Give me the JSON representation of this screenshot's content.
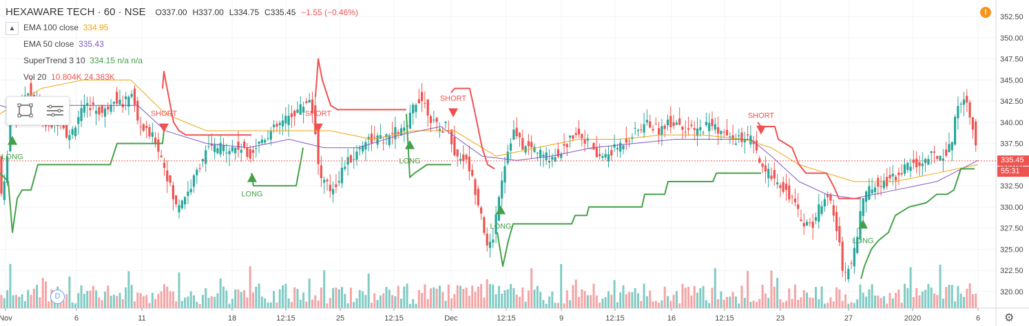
{
  "header": {
    "symbol": "HEXAWARE TECH · 60 · NSE",
    "open": "O337.00",
    "high": "H337.00",
    "low": "L334.75",
    "close": "C335.45",
    "change": "−1.55 (−0.46%)"
  },
  "indicators": [
    {
      "name": "EMA 100 close",
      "value": "334.95",
      "color": "#f0a30a"
    },
    {
      "name": "EMA 50 close",
      "value": "335.43",
      "color": "#7e57c2"
    },
    {
      "name": "SuperTrend 3 10",
      "value": "334.15  n/a  n/a",
      "color": "#43a047"
    },
    {
      "name": "Vol 20",
      "value": "10.804K  24.383K",
      "color": "#ef5350"
    }
  ],
  "icons": {
    "collapse": "chevron-up-icon",
    "rect_tool": "rectangle-select-icon",
    "menu_tool": "hamburger-menu-icon",
    "alert": "exclamation-icon",
    "dividend": "D",
    "settings": "gear-icon"
  },
  "price_tags": {
    "last_price": "335.45",
    "countdown": "55:31"
  },
  "colors": {
    "up": "#26a69a",
    "down": "#ef5350",
    "vol_up": "#80cbc4",
    "vol_down": "#f4a4a4",
    "ema100": "#f0a30a",
    "ema50": "#7e57c2",
    "st_up": "#43a047",
    "st_down": "#f05050"
  },
  "chart_data": {
    "type": "candlestick",
    "ylim": [
      318.5,
      353.5
    ],
    "y_ticks": [
      320.0,
      322.5,
      325.0,
      327.5,
      330.0,
      332.5,
      335.0,
      337.5,
      340.0,
      342.5,
      345.0,
      347.5,
      350.0,
      352.5
    ],
    "x_tick_labels": [
      "Nov",
      "6",
      "11",
      "18",
      "12:15",
      "25",
      "12:15",
      "Dec",
      "12:15",
      "9",
      "12:15",
      "16",
      "12:15",
      "23",
      "27",
      "2020",
      "6"
    ],
    "last_price": 335.45,
    "ohlc_trend": [
      [
        0,
        331
      ],
      [
        8,
        333
      ],
      [
        14,
        341
      ],
      [
        25,
        341
      ],
      [
        40,
        344
      ],
      [
        55,
        342
      ],
      [
        70,
        339
      ],
      [
        85,
        341
      ],
      [
        100,
        338
      ],
      [
        115,
        341
      ],
      [
        130,
        342
      ],
      [
        150,
        341
      ],
      [
        165,
        343
      ],
      [
        180,
        342
      ],
      [
        190,
        344
      ],
      [
        200,
        340
      ],
      [
        210,
        339
      ],
      [
        225,
        338
      ],
      [
        238,
        335
      ],
      [
        245,
        333
      ],
      [
        255,
        330
      ],
      [
        265,
        331
      ],
      [
        275,
        332
      ],
      [
        285,
        334
      ],
      [
        295,
        336
      ],
      [
        305,
        337
      ],
      [
        320,
        337
      ],
      [
        335,
        337
      ],
      [
        350,
        337
      ],
      [
        360,
        336
      ],
      [
        370,
        337
      ],
      [
        380,
        338
      ],
      [
        395,
        339
      ],
      [
        410,
        340
      ],
      [
        425,
        341
      ],
      [
        440,
        342
      ],
      [
        450,
        343
      ],
      [
        458,
        339
      ],
      [
        463,
        334
      ],
      [
        470,
        333
      ],
      [
        480,
        332
      ],
      [
        490,
        333
      ],
      [
        500,
        335
      ],
      [
        515,
        336
      ],
      [
        530,
        338
      ],
      [
        545,
        338
      ],
      [
        560,
        338
      ],
      [
        575,
        339
      ],
      [
        590,
        339
      ],
      [
        600,
        342
      ],
      [
        610,
        343
      ],
      [
        618,
        342
      ],
      [
        628,
        340
      ],
      [
        640,
        339
      ],
      [
        650,
        340
      ],
      [
        660,
        336
      ],
      [
        670,
        336
      ],
      [
        680,
        335
      ],
      [
        690,
        332
      ],
      [
        700,
        329
      ],
      [
        707,
        325
      ],
      [
        715,
        326
      ],
      [
        725,
        332
      ],
      [
        735,
        336
      ],
      [
        745,
        339
      ],
      [
        760,
        337
      ],
      [
        775,
        337
      ],
      [
        790,
        336
      ],
      [
        805,
        336
      ],
      [
        820,
        337
      ],
      [
        835,
        339
      ],
      [
        850,
        338
      ],
      [
        865,
        336
      ],
      [
        880,
        336
      ],
      [
        895,
        337
      ],
      [
        910,
        338
      ],
      [
        925,
        339
      ],
      [
        940,
        340
      ],
      [
        955,
        339
      ],
      [
        970,
        340
      ],
      [
        985,
        340
      ],
      [
        1000,
        339
      ],
      [
        1015,
        339
      ],
      [
        1030,
        340
      ],
      [
        1045,
        339
      ],
      [
        1060,
        338
      ],
      [
        1075,
        338
      ],
      [
        1090,
        338
      ],
      [
        1100,
        336
      ],
      [
        1108,
        334
      ],
      [
        1118,
        334
      ],
      [
        1130,
        333
      ],
      [
        1140,
        332
      ],
      [
        1150,
        331
      ],
      [
        1160,
        329
      ],
      [
        1170,
        328
      ],
      [
        1180,
        328
      ],
      [
        1190,
        330
      ],
      [
        1200,
        332
      ],
      [
        1210,
        329
      ],
      [
        1218,
        326
      ],
      [
        1225,
        322
      ],
      [
        1235,
        323
      ],
      [
        1245,
        327
      ],
      [
        1252,
        331
      ],
      [
        1262,
        332
      ],
      [
        1275,
        333
      ],
      [
        1290,
        333
      ],
      [
        1305,
        334
      ],
      [
        1320,
        335
      ],
      [
        1335,
        335
      ],
      [
        1350,
        336
      ],
      [
        1365,
        336
      ],
      [
        1380,
        337
      ],
      [
        1390,
        342
      ],
      [
        1398,
        343
      ],
      [
        1405,
        342
      ],
      [
        1412,
        340
      ],
      [
        1418,
        336
      ]
    ],
    "ema100": [
      [
        0,
        341
      ],
      [
        60,
        344
      ],
      [
        120,
        345
      ],
      [
        190,
        345
      ],
      [
        240,
        341
      ],
      [
        300,
        339
      ],
      [
        360,
        339
      ],
      [
        420,
        339
      ],
      [
        480,
        339
      ],
      [
        540,
        338
      ],
      [
        600,
        339
      ],
      [
        660,
        339
      ],
      [
        720,
        336
      ],
      [
        780,
        337
      ],
      [
        840,
        338
      ],
      [
        900,
        338
      ],
      [
        960,
        338.5
      ],
      [
        1020,
        338.5
      ],
      [
        1080,
        338
      ],
      [
        1120,
        337
      ],
      [
        1160,
        335
      ],
      [
        1200,
        334
      ],
      [
        1240,
        333
      ],
      [
        1300,
        333
      ],
      [
        1360,
        334
      ],
      [
        1420,
        335
      ]
    ],
    "ema50": [
      [
        0,
        342
      ],
      [
        40,
        341
      ],
      [
        90,
        342
      ],
      [
        150,
        342
      ],
      [
        200,
        342
      ],
      [
        240,
        339
      ],
      [
        300,
        337.5
      ],
      [
        360,
        337
      ],
      [
        420,
        338
      ],
      [
        470,
        337
      ],
      [
        520,
        337
      ],
      [
        580,
        338.5
      ],
      [
        640,
        339.5
      ],
      [
        700,
        336
      ],
      [
        750,
        335.5
      ],
      [
        800,
        336
      ],
      [
        860,
        337
      ],
      [
        920,
        337.5
      ],
      [
        980,
        338
      ],
      [
        1040,
        338
      ],
      [
        1090,
        338
      ],
      [
        1120,
        336
      ],
      [
        1160,
        333
      ],
      [
        1200,
        331.5
      ],
      [
        1240,
        331
      ],
      [
        1300,
        332
      ],
      [
        1360,
        333
      ],
      [
        1420,
        335.5
      ]
    ],
    "supertrend": [
      {
        "dir": "up",
        "points": [
          [
            0,
            334
          ],
          [
            12,
            333
          ],
          [
            18,
            327
          ],
          [
            25,
            331
          ],
          [
            32,
            332
          ],
          [
            45,
            332
          ],
          [
            55,
            335
          ],
          [
            160,
            335
          ],
          [
            170,
            337.5
          ],
          [
            236,
            337.5
          ],
          [
            238,
            339
          ]
        ]
      },
      {
        "dir": "down",
        "points": [
          [
            236,
            344
          ],
          [
            238,
            346
          ],
          [
            245,
            343
          ],
          [
            252,
            340
          ],
          [
            260,
            339
          ],
          [
            270,
            338.5
          ],
          [
            365,
            338.5
          ]
        ]
      },
      {
        "dir": "up",
        "points": [
          [
            365,
            334
          ],
          [
            368,
            332.5
          ],
          [
            430,
            332.5
          ],
          [
            438,
            336
          ],
          [
            440,
            337
          ]
        ]
      },
      {
        "dir": "down",
        "points": [
          [
            458,
            343
          ],
          [
            462,
            347.5
          ],
          [
            468,
            345
          ],
          [
            480,
            342
          ],
          [
            490,
            341.5
          ],
          [
            590,
            341.5
          ]
        ]
      },
      {
        "dir": "up",
        "points": [
          [
            590,
            341
          ],
          [
            595,
            333.5
          ],
          [
            602,
            334
          ],
          [
            620,
            335
          ],
          [
            655,
            335
          ]
        ]
      },
      {
        "dir": "down",
        "points": [
          [
            655,
            343.5
          ],
          [
            660,
            344
          ],
          [
            682,
            344
          ],
          [
            690,
            341
          ],
          [
            700,
            337
          ],
          [
            708,
            335
          ],
          [
            718,
            334.5
          ]
        ]
      },
      {
        "dir": "up",
        "points": [
          [
            722,
            327
          ],
          [
            730,
            323
          ],
          [
            738,
            326
          ],
          [
            745,
            328
          ],
          [
            830,
            328
          ],
          [
            835,
            329
          ],
          [
            852,
            329
          ],
          [
            855,
            330
          ],
          [
            932,
            330
          ],
          [
            936,
            331.5
          ],
          [
            965,
            331.5
          ],
          [
            970,
            333
          ],
          [
            1035,
            333
          ],
          [
            1040,
            334
          ],
          [
            1105,
            334
          ]
        ]
      },
      {
        "dir": "down",
        "points": [
          [
            1100,
            340
          ],
          [
            1105,
            339.5
          ],
          [
            1125,
            339.5
          ],
          [
            1130,
            338
          ],
          [
            1150,
            337
          ],
          [
            1160,
            335
          ],
          [
            1170,
            334
          ],
          [
            1200,
            334
          ],
          [
            1210,
            332.5
          ],
          [
            1218,
            331
          ],
          [
            1250,
            331
          ]
        ]
      },
      {
        "dir": "up",
        "points": [
          [
            1250,
            321.5
          ],
          [
            1255,
            323
          ],
          [
            1265,
            325
          ],
          [
            1275,
            326
          ],
          [
            1290,
            327
          ],
          [
            1300,
            329
          ],
          [
            1310,
            329.5
          ],
          [
            1320,
            330
          ],
          [
            1345,
            330.5
          ],
          [
            1360,
            331.5
          ],
          [
            1375,
            331.5
          ],
          [
            1385,
            332
          ],
          [
            1395,
            334.5
          ],
          [
            1415,
            334.5
          ]
        ]
      }
    ],
    "signals": [
      {
        "label": "LONG",
        "x": 18,
        "type": "long"
      },
      {
        "label": "SHORT",
        "x": 238,
        "type": "short"
      },
      {
        "label": "LONG",
        "x": 366,
        "type": "long"
      },
      {
        "label": "SHORT",
        "x": 462,
        "type": "short"
      },
      {
        "label": "LONG",
        "x": 595,
        "type": "long"
      },
      {
        "label": "SHORT",
        "x": 658,
        "type": "short"
      },
      {
        "label": "LONG",
        "x": 727,
        "type": "long"
      },
      {
        "label": "SHORT",
        "x": 1105,
        "type": "short"
      },
      {
        "label": "LONG",
        "x": 1253,
        "type": "long"
      }
    ]
  }
}
